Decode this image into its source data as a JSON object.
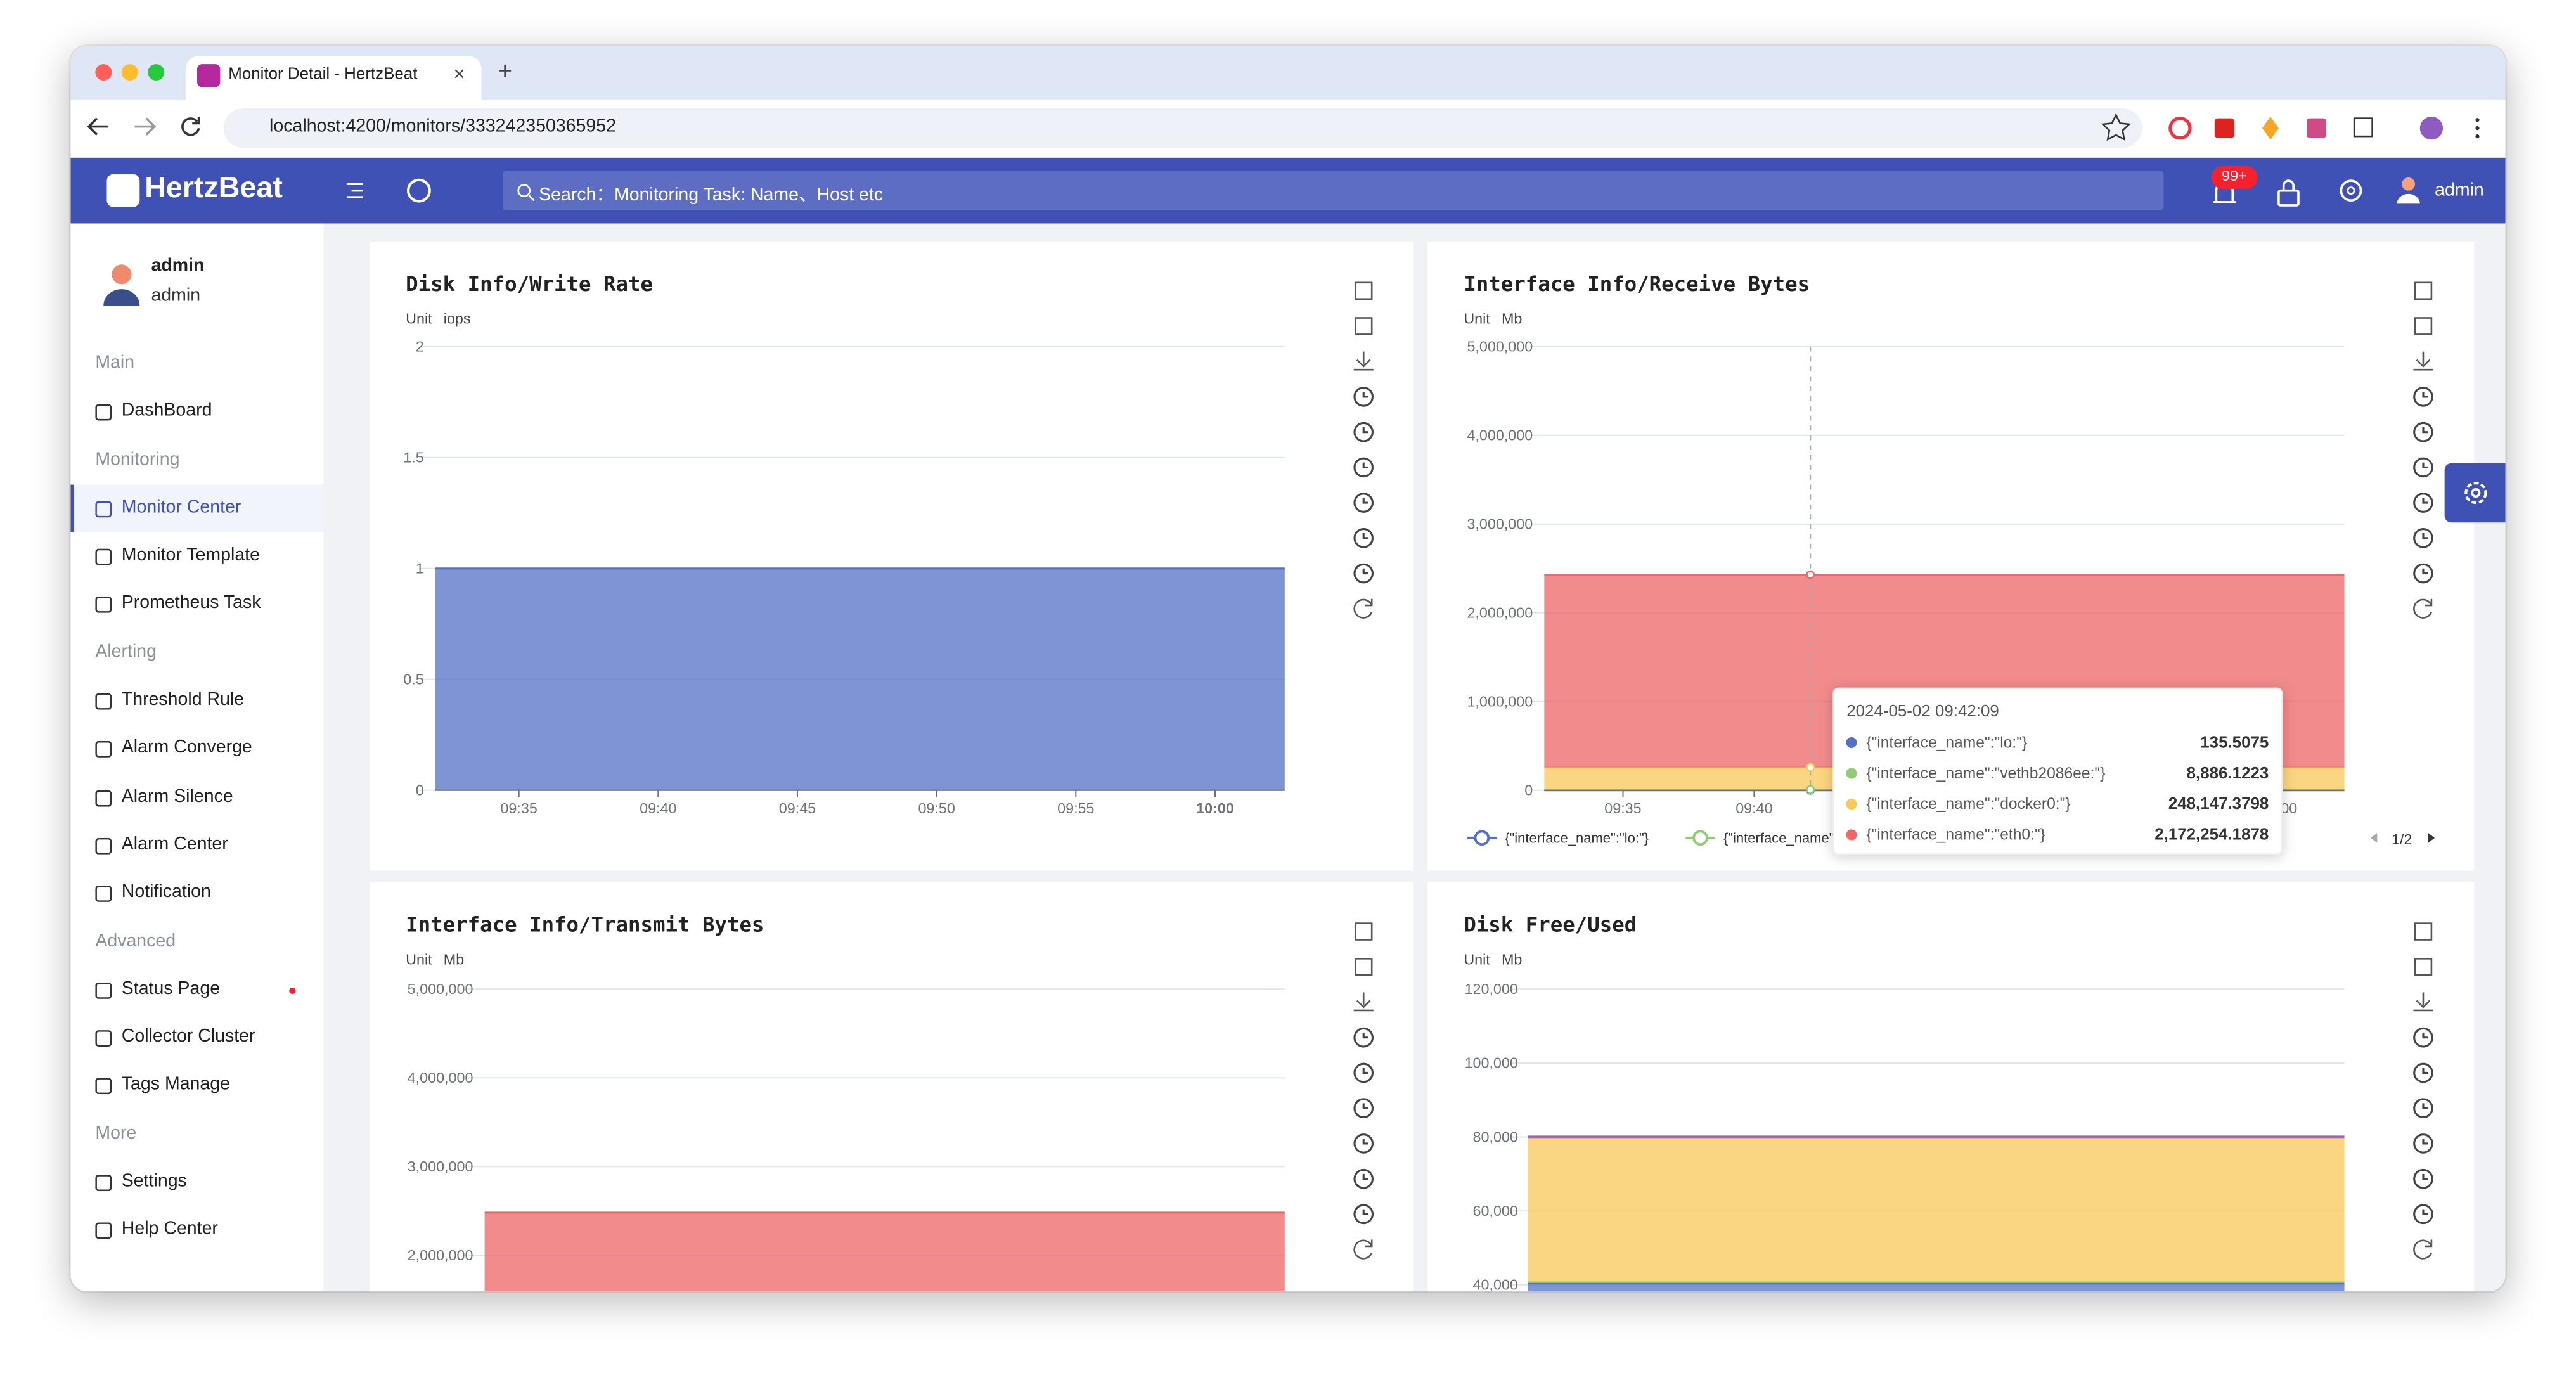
{
  "browser": {
    "tab_title": "Monitor Detail - HertzBeat",
    "url": "localhost:4200/monitors/333242350365952"
  },
  "header": {
    "logo": "HertzBeat",
    "search_placeholder": "Search：Monitoring Task: Name、Host etc",
    "badge": "99+",
    "user": "admin"
  },
  "sidebar": {
    "user": {
      "name": "admin",
      "role": "admin"
    },
    "groups": [
      {
        "title": "Main",
        "items": [
          "DashBoard"
        ]
      },
      {
        "title": "Monitoring",
        "items": [
          "Monitor Center",
          "Monitor Template",
          "Prometheus Task"
        ]
      },
      {
        "title": "Alerting",
        "items": [
          "Threshold Rule",
          "Alarm Converge",
          "Alarm Silence",
          "Alarm Center",
          "Notification"
        ]
      },
      {
        "title": "Advanced",
        "items": [
          "Status Page",
          "Collector Cluster",
          "Tags Manage"
        ]
      },
      {
        "title": "More",
        "items": [
          "Settings",
          "Help Center"
        ]
      }
    ]
  },
  "charts": [
    {
      "type": "area",
      "title": "Disk Info/Write Rate",
      "unit_label": "Unit",
      "unit": "iops",
      "categories": [
        null,
        "09:35",
        "09:40",
        "09:45",
        "09:50",
        "09:55",
        "10:00",
        null
      ],
      "ylim": [
        0,
        2
      ],
      "yticks": [
        0,
        0.5,
        1,
        1.5,
        2
      ],
      "series": [
        {
          "color": "#5470c6",
          "values": [
            1,
            1,
            1,
            1,
            1,
            1,
            1,
            1
          ]
        }
      ]
    },
    {
      "type": "area",
      "title": "Interface Info/Receive Bytes",
      "unit_label": "Unit",
      "unit": "Mb",
      "stacked": true,
      "categories": [
        null,
        "09:35",
        "09:40",
        "09:45",
        "09:50",
        "09:55",
        "10:00",
        null
      ],
      "ylim": [
        0,
        5000000
      ],
      "yticks": [
        0,
        {
          "value": 1000000,
          "label": "1,000,000"
        },
        {
          "value": 2000000,
          "label": "2,000,000"
        },
        {
          "value": 3000000,
          "label": "3,000,000"
        },
        {
          "value": 4000000,
          "label": "4,000,000"
        },
        {
          "value": 5000000,
          "label": "5,000,000"
        }
      ],
      "series": [
        {
          "name": "{\"interface_name\":\"lo:\"}",
          "color": "#5470c6",
          "values": [
            135.5075,
            135.5075,
            135.5075,
            135.5075,
            135.5075,
            135.5075,
            135.5075,
            135.5075
          ]
        },
        {
          "name": "{\"interface_name\":\"vethb2086ee:\"}",
          "color": "#91cc75",
          "values": [
            8886.1223,
            8886.1223,
            8886.1223,
            8886.1223,
            8886.1223,
            8886.1223,
            8886.1223,
            8886.1223
          ]
        },
        {
          "name": "{\"interface_name\":\"docker0:\"}",
          "color": "#fac858",
          "values": [
            248147.3798,
            248147.3798,
            248147.3798,
            248147.3798,
            248147.3798,
            248147.3798,
            248147.3798,
            248147.3798
          ]
        },
        {
          "name": "{\"interface_name\":\"eth0:\"}",
          "color": "#ee6666",
          "values": [
            2172254.1878,
            2172254.1878,
            2172254.1878,
            2172254.1878,
            2172254.1878,
            2172254.1878,
            2172254.1878,
            2172254.1878
          ]
        }
      ],
      "legend_page": "1/2",
      "tooltip": {
        "title": "2024-05-02 09:42:09",
        "value_labels": [
          "135.5075",
          "8,886.1223",
          "248,147.3798",
          "2,172,254.1878"
        ]
      }
    },
    {
      "type": "area",
      "title": "Interface Info/Transmit Bytes",
      "unit_label": "Unit",
      "unit": "Mb",
      "ylim": [
        0,
        5000000
      ],
      "yticks": [
        {
          "value": 2000000,
          "label": "2,000,000"
        },
        {
          "value": 3000000,
          "label": "3,000,000"
        },
        {
          "value": 4000000,
          "label": "4,000,000"
        },
        {
          "value": 5000000,
          "label": "5,000,000"
        }
      ],
      "series": [
        {
          "color": "#ee6666",
          "values": [
            2480000,
            2480000
          ]
        }
      ]
    },
    {
      "type": "area",
      "title": "Disk Free/Used",
      "unit_label": "Unit",
      "unit": "Mb",
      "stacked": true,
      "ylim": [
        0,
        120000
      ],
      "yticks": [
        {
          "value": 40000,
          "label": "40,000"
        },
        {
          "value": 60000,
          "label": "60,000"
        },
        {
          "value": 80000,
          "label": "80,000"
        },
        {
          "value": 100000,
          "label": "100,000"
        },
        {
          "value": 120000,
          "label": "120,000"
        }
      ],
      "series": [
        {
          "color": "#5470c6",
          "values": [
            40500,
            40500
          ]
        },
        {
          "color": "#91cc75",
          "values": [
            300,
            300
          ]
        },
        {
          "color": "#fac858",
          "values": [
            38900,
            38900
          ]
        },
        {
          "color": "#9a60b4",
          "values": [
            400,
            400
          ]
        }
      ]
    }
  ]
}
